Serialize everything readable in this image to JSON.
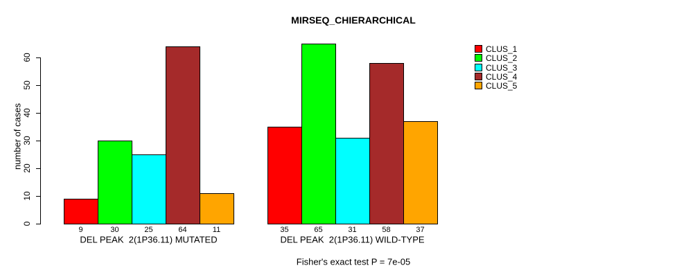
{
  "figure": {
    "title": "MIRSEQ_CHIERARCHICAL",
    "caption": "Fisher's exact test P = 7e-05"
  },
  "chart_data": {
    "type": "bar",
    "title": "MIRSEQ_CHIERARCHICAL",
    "xlabel": "",
    "ylabel": "number of cases",
    "ylim": [
      0,
      65
    ],
    "yticks": [
      0,
      10,
      20,
      30,
      40,
      50,
      60
    ],
    "grid": false,
    "legend_position": "right-outside",
    "bar_value_labels": true,
    "bar_border_color": "#000000",
    "categories": [
      "DEL PEAK  2(1P36.11) MUTATED",
      "DEL PEAK  2(1P36.11) WILD-TYPE"
    ],
    "series": [
      {
        "name": "CLUS_1",
        "color": "#FF0000",
        "values": [
          9,
          35
        ]
      },
      {
        "name": "CLUS_2",
        "color": "#00FF00",
        "values": [
          30,
          65
        ]
      },
      {
        "name": "CLUS_3",
        "color": "#00FFFF",
        "values": [
          25,
          31
        ]
      },
      {
        "name": "CLUS_4",
        "color": "#A52A2A",
        "values": [
          64,
          58
        ]
      },
      {
        "name": "CLUS_5",
        "color": "#FFA500",
        "values": [
          11,
          37
        ]
      }
    ],
    "annotation": "Fisher's exact test P = 7e-05"
  }
}
